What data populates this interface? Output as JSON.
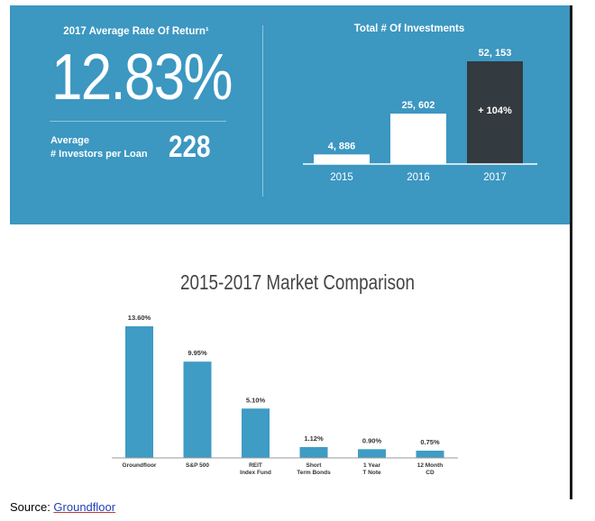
{
  "colors": {
    "panel_bg": "#3c97c1",
    "bar_white": "#ffffff",
    "bar_dark": "#333a40",
    "bar_blue": "#3f9cc4"
  },
  "stats": {
    "rate_title": "2017 Average Rate Of Return¹",
    "rate_value": "12.83%",
    "avg_label_line1": "Average",
    "avg_label_line2": "# Investors per Loan",
    "avg_value": "228"
  },
  "chart_data": [
    {
      "type": "bar",
      "title": "Total # Of Investments",
      "categories": [
        "2015",
        "2016",
        "2017"
      ],
      "values": [
        4886,
        25602,
        52153
      ],
      "value_labels": [
        "4, 886",
        "25, 602",
        "52, 153"
      ],
      "annotation": "+ 104%",
      "ylim": [
        0,
        52153
      ]
    },
    {
      "type": "bar",
      "title": "2015-2017 Market Comparison",
      "categories": [
        "Groundfloor",
        "S&P 500",
        "REIT Index Fund",
        "Short Term Bonds",
        "1 Year T Note",
        "12 Month CD"
      ],
      "category_lines": [
        [
          "Groundfloor"
        ],
        [
          "S&P 500"
        ],
        [
          "REIT",
          "Index Fund"
        ],
        [
          "Short",
          "Term Bonds"
        ],
        [
          "1 Year",
          "T Note"
        ],
        [
          "12 Month",
          "CD"
        ]
      ],
      "values": [
        13.6,
        9.95,
        5.1,
        1.12,
        0.9,
        0.75
      ],
      "value_labels": [
        "13.60%",
        "9.95%",
        "5.10%",
        "1.12%",
        "0.90%",
        "0.75%"
      ],
      "ylim": [
        0,
        13.6
      ]
    }
  ],
  "source": {
    "label": "Source: ",
    "link": "Groundfloor"
  }
}
